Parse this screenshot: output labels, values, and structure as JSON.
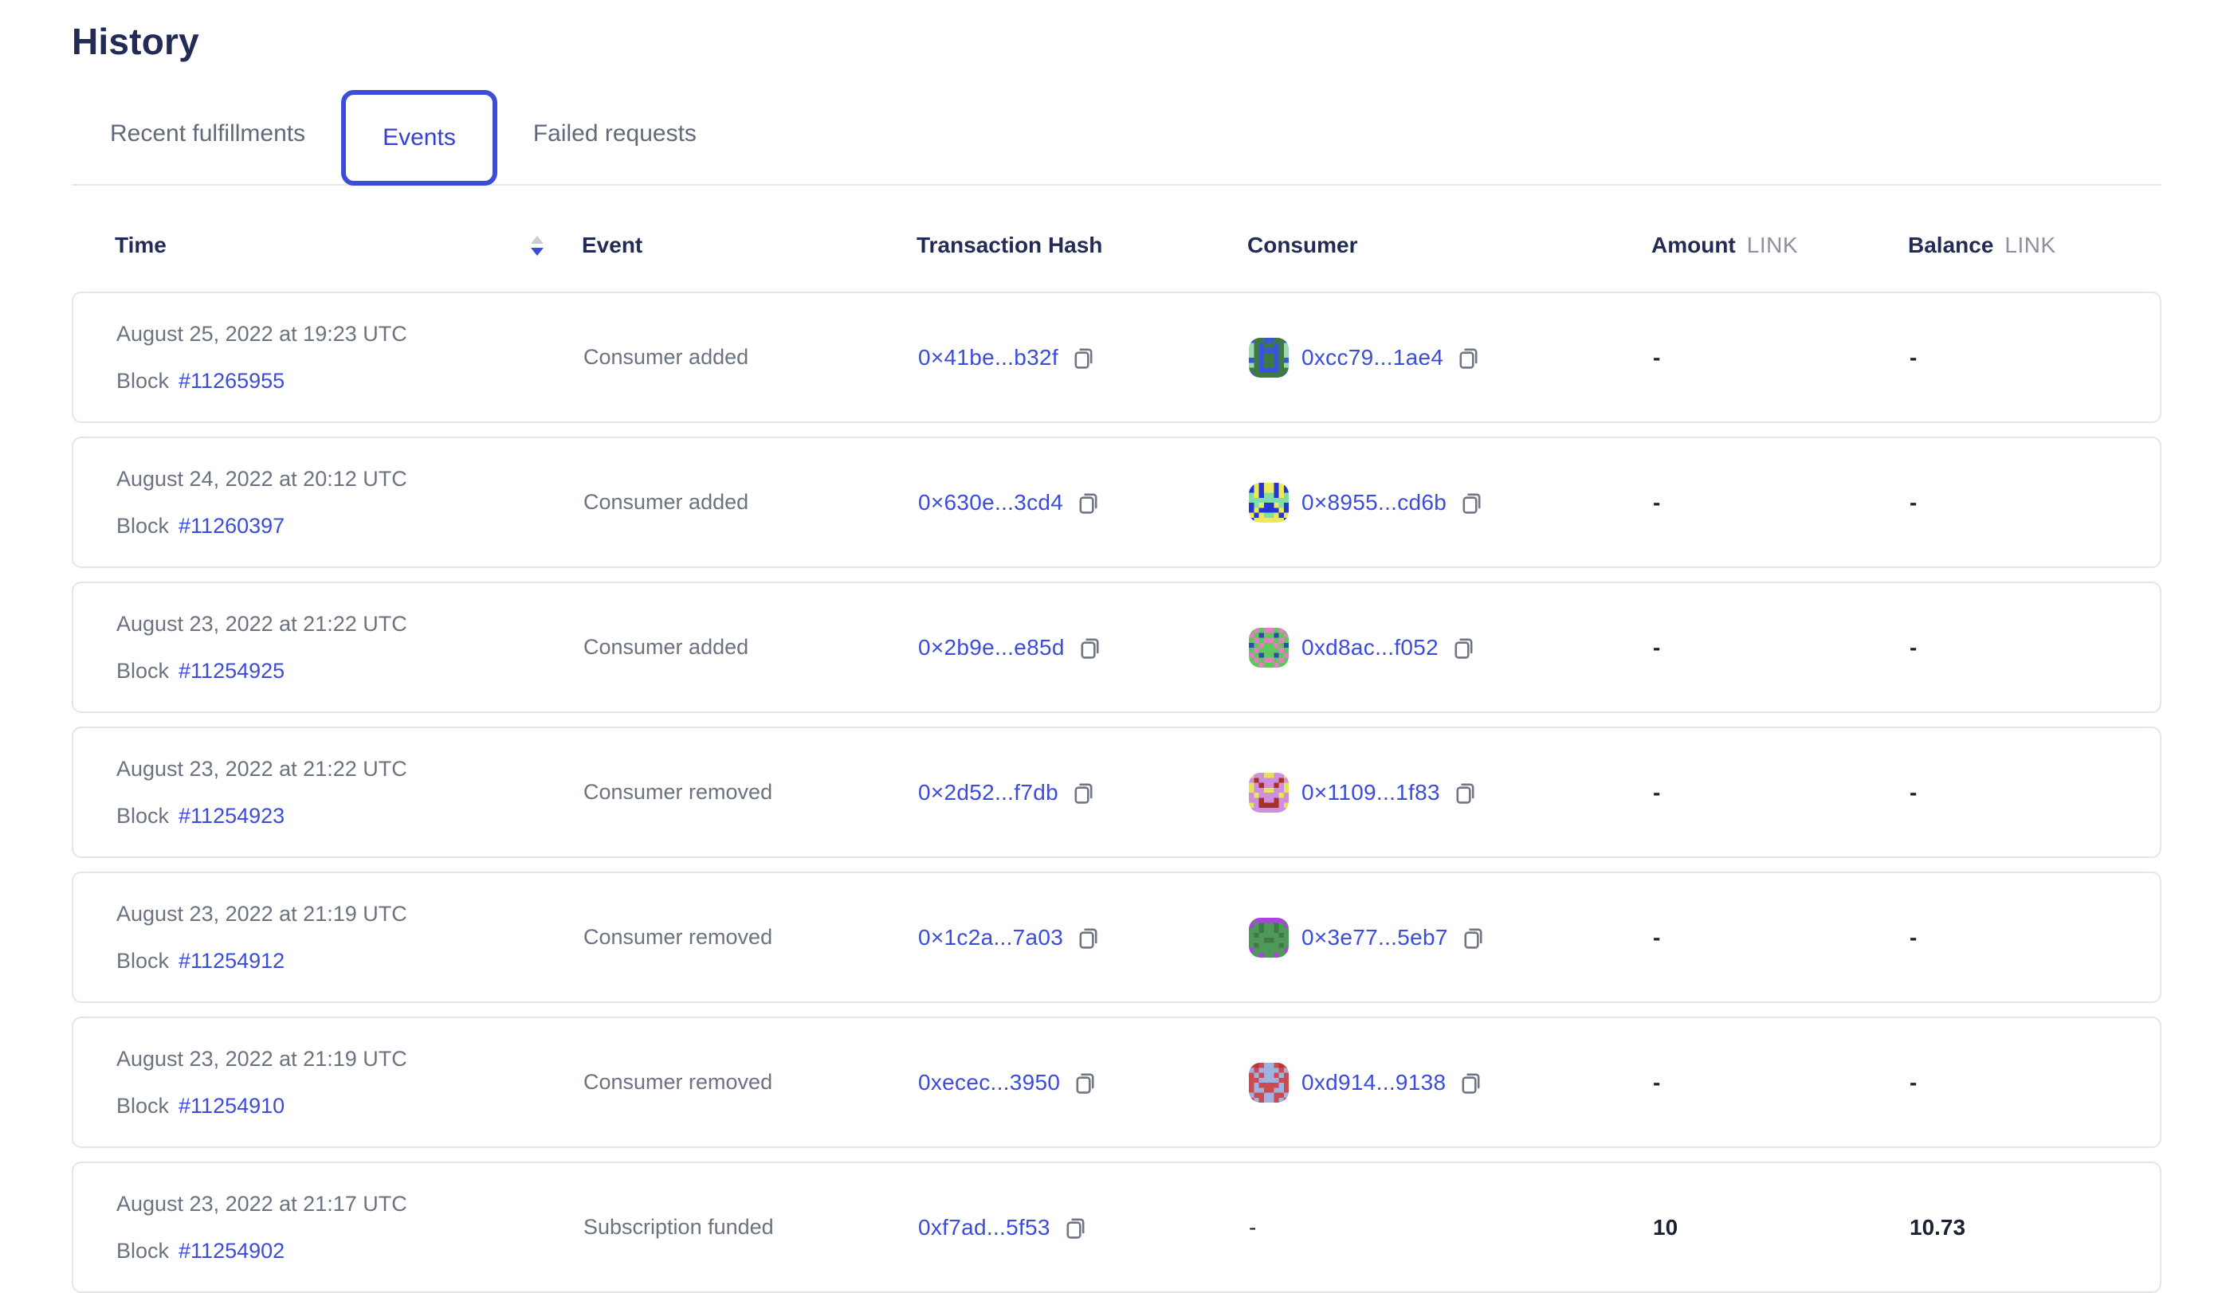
{
  "page": {
    "title": "History"
  },
  "tabs": [
    {
      "label": "Recent fulfillments",
      "active": false
    },
    {
      "label": "Events",
      "active": true
    },
    {
      "label": "Failed requests",
      "active": false
    }
  ],
  "colors": {
    "link_blue": "#3b4cdb",
    "active_tab_border": "#3b4cdb",
    "heading_navy": "#222b54",
    "muted_gray": "#6b7280"
  },
  "table": {
    "block_label": "Block",
    "columns": {
      "time": "Time",
      "event": "Event",
      "tx": "Transaction Hash",
      "consumer": "Consumer",
      "amount": "Amount",
      "balance": "Balance",
      "unit": "LINK"
    },
    "rows": [
      {
        "date": "August 25, 2022 at 19:23 UTC",
        "block": "#11265955",
        "event": "Consumer added",
        "tx": "0×41be...b32f",
        "consumer": "0xcc79...1ae4",
        "amount": "-",
        "balance": "-",
        "avatar": {
          "bg": "#3e7a40",
          "fg": "#3b55d9",
          "accent": "#9fd6b4",
          "pattern": [
            "f..ff..f",
            "a.f..f.a",
            "a.ffff.a",
            "a.f..f.a",
            "f.f..f.f",
            "a.f..f.a",
            "..ffff..",
            "f......f"
          ]
        }
      },
      {
        "date": "August 24, 2022 at 20:12 UTC",
        "block": "#11260397",
        "event": "Consumer added",
        "tx": "0×630e...3cd4",
        "consumer": "0×8955...cd6b",
        "amount": "-",
        "balance": "-",
        "avatar": {
          "bg": "#2635d6",
          "fg": "#ece95d",
          "accent": "#7fdfa6",
          "pattern": [
            ".f.ff.f.",
            ".f.ff.f.",
            "af.aa.fa",
            "aaaaaaaa",
            ".af..fa.",
            ".f....f.",
            "f.faaf.f",
            ".ffffff."
          ]
        }
      },
      {
        "date": "August 23, 2022 at 21:22 UTC",
        "block": "#11254925",
        "event": "Consumer added",
        "tx": "0×2b9e...e85d",
        "consumer": "0xd8ac...f052",
        "amount": "-",
        "balance": "-",
        "avatar": {
          "bg": "#5ec75e",
          "fg": "#e57fc0",
          "accent": "#2a4cb3",
          "pattern": [
            ".f.ff.f.",
            "f.a..a.f",
            ".f.ff.f.",
            "a.f..f.a",
            ".f....f.",
            "f.a..a.f",
            ".f.ff.f.",
            "..f..f.."
          ]
        }
      },
      {
        "date": "August 23, 2022 at 21:22 UTC",
        "block": "#11254923",
        "event": "Consumer removed",
        "tx": "0×2d52...f7db",
        "consumer": "0×1109...1f83",
        "amount": "-",
        "balance": "-",
        "avatar": {
          "bg": "#cf8fdd",
          "fg": "#e5e25e",
          "accent": "#a83226",
          "pattern": [
            "f..ff..f",
            ".a....a.",
            "f.a..a.f",
            "f..ff..f",
            ".f....f.",
            "..a..a..",
            "f.aaaa.f",
            "........"
          ]
        }
      },
      {
        "date": "August 23, 2022 at 21:19 UTC",
        "block": "#11254912",
        "event": "Consumer removed",
        "tx": "0×1c2a...7a03",
        "consumer": "0×3e77...5eb7",
        "amount": "-",
        "balance": "-",
        "avatar": {
          "bg": "#4f9958",
          "fg": "#a944e0",
          "accent": "#3d7a46",
          "pattern": [
            ".ffffff.",
            "f.a..a.f",
            "..a..a..",
            ".a....a.",
            "...aa...",
            ".a....a.",
            "f......f",
            "..f..f.."
          ]
        }
      },
      {
        "date": "August 23, 2022 at 21:19 UTC",
        "block": "#11254910",
        "event": "Consumer removed",
        "tx": "0xecec...3950",
        "consumer": "0xd914...9138",
        "amount": "-",
        "balance": "-",
        "avatar": {
          "bg": "#cd4a50",
          "fg": "#9fb2e2",
          "accent": "#b13a3c",
          "pattern": [
            ".a.ff.a.",
            "f.ffff.f",
            ".f.ff.f.",
            "..ffff..",
            ".f....f.",
            ".ff..ff.",
            "f..ff..f",
            ".f.ff.f."
          ]
        }
      },
      {
        "date": "August 23, 2022 at 21:17 UTC",
        "block": "#11254902",
        "event": "Subscription funded",
        "tx": "0xf7ad...5f53",
        "consumer": "-",
        "amount": "10",
        "balance": "10.73",
        "avatar": null
      }
    ]
  }
}
